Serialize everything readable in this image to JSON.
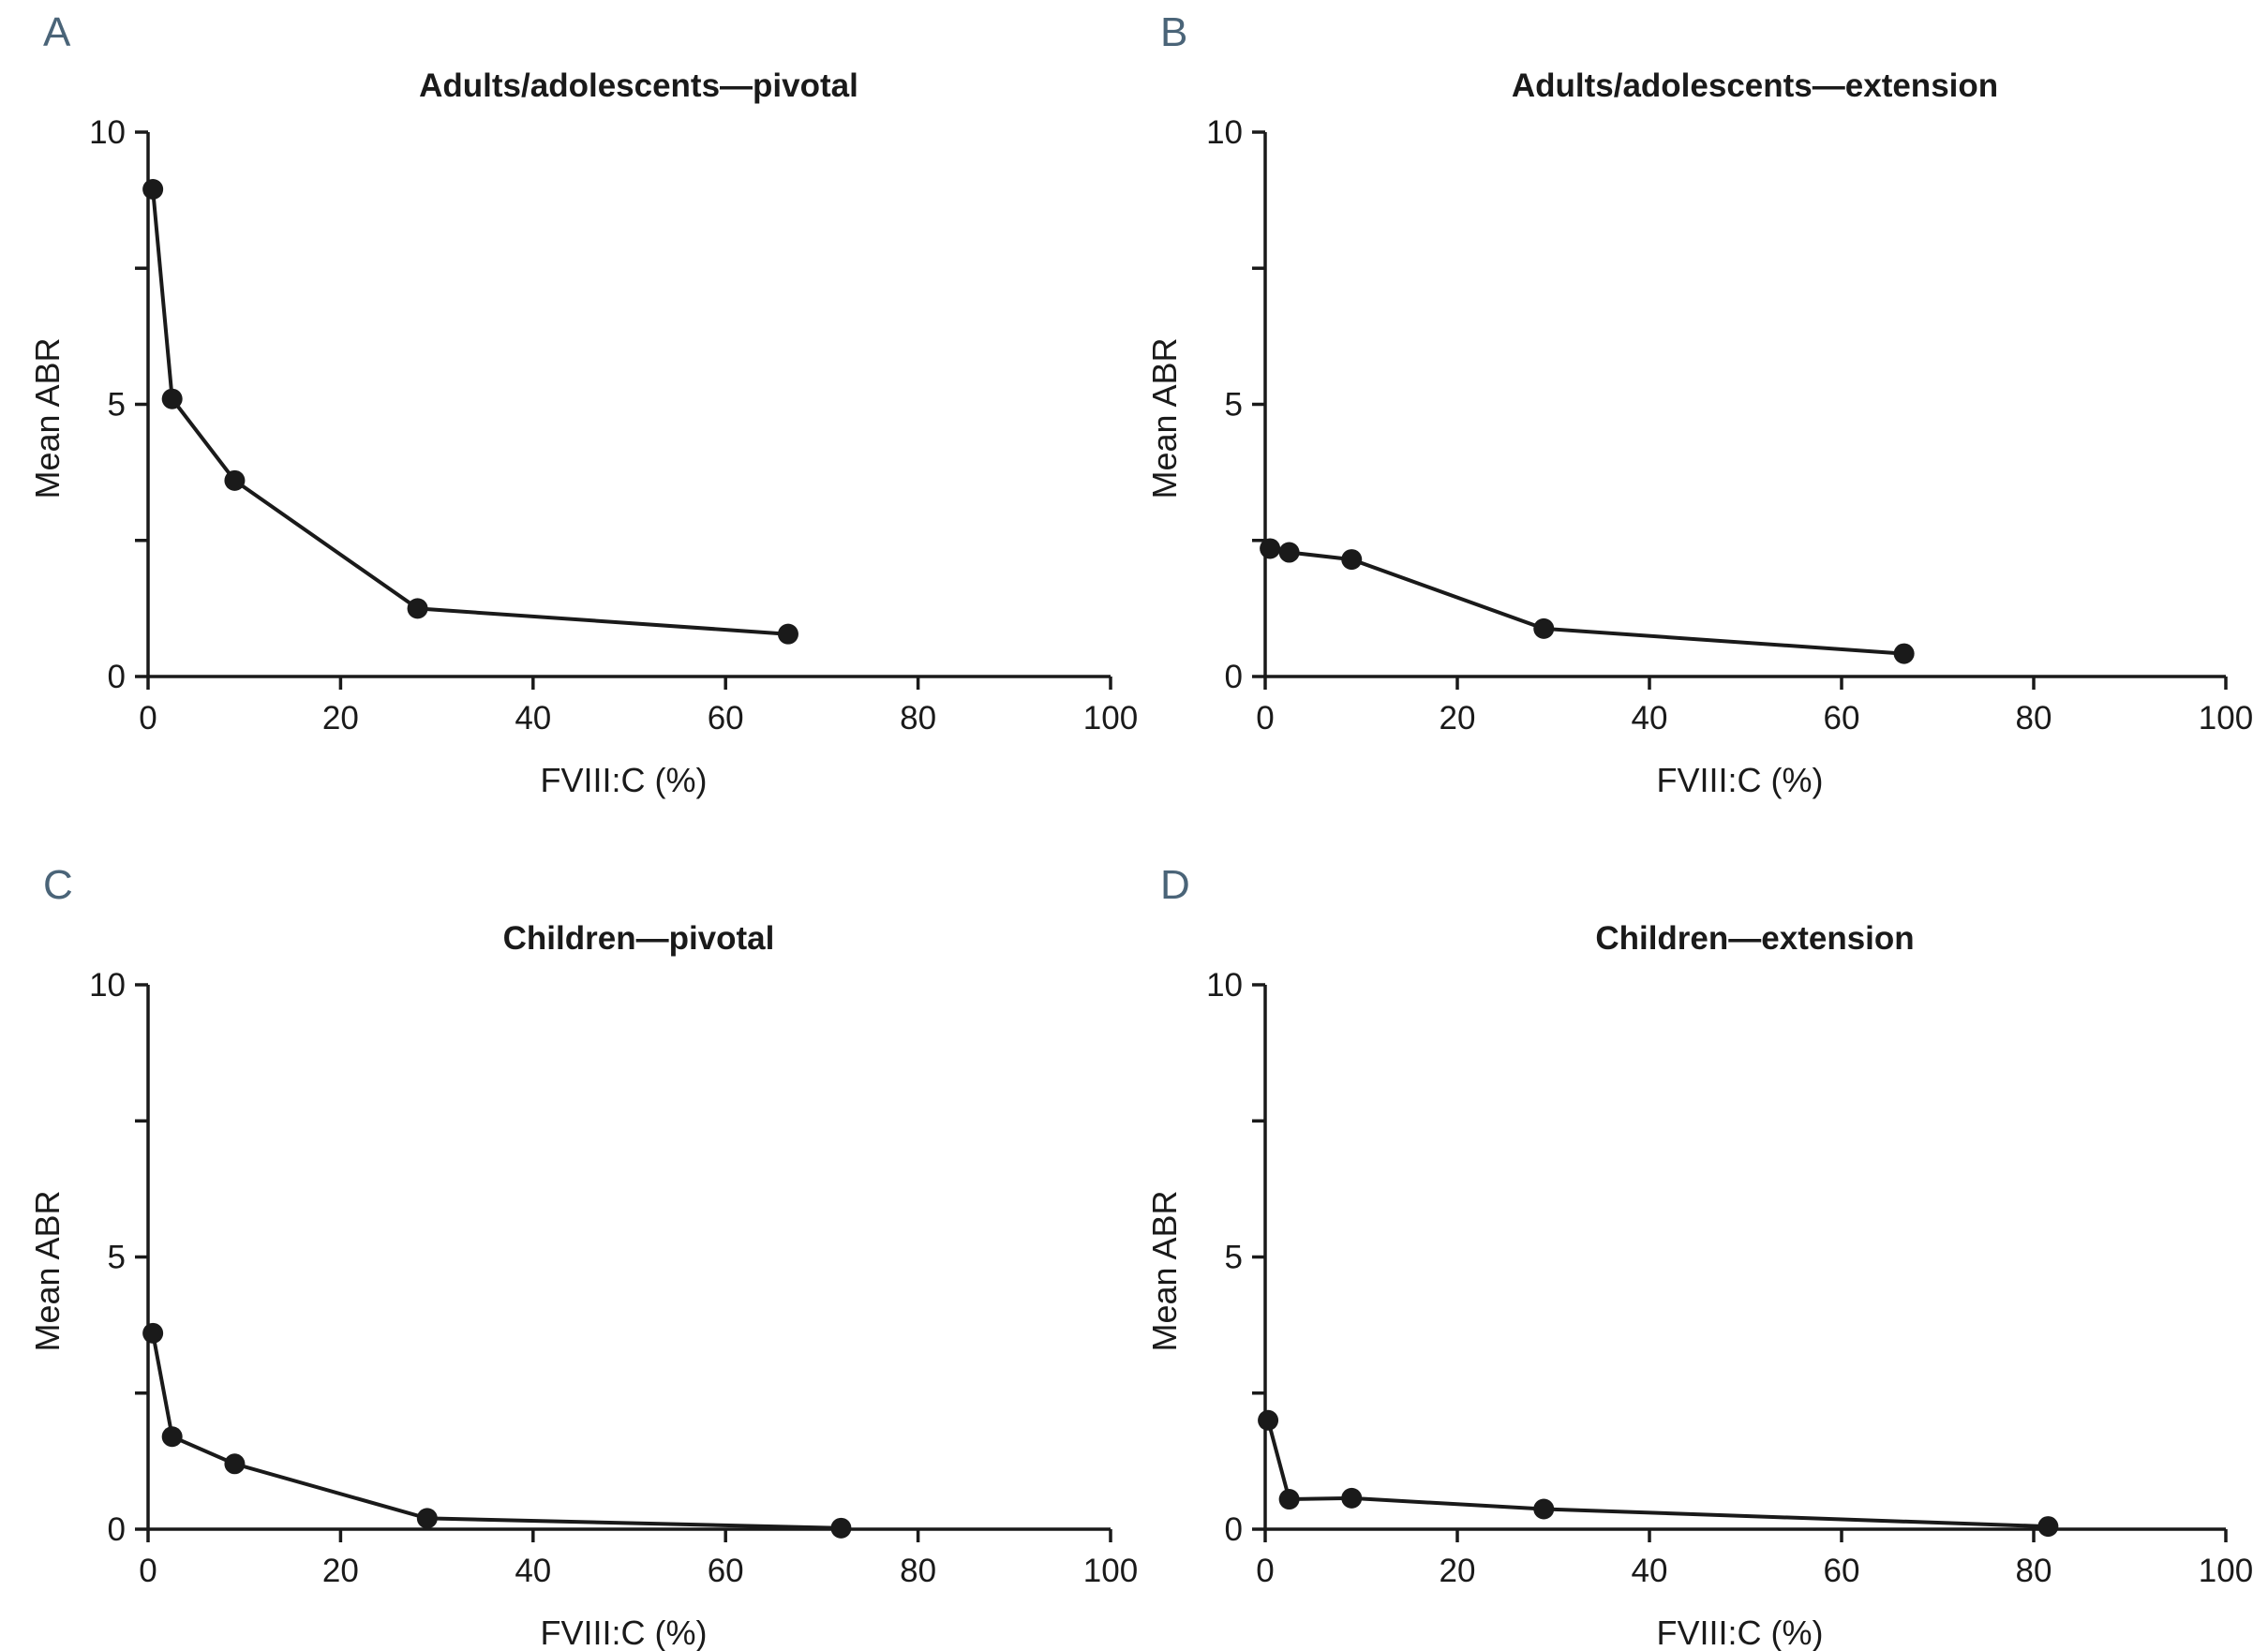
{
  "colors": {
    "series": "#1a1a1a",
    "panel_letter": "#4a6478"
  },
  "chart_data": [
    {
      "panel": "A",
      "type": "line",
      "title": "Adults/adolescents—pivotal",
      "xlabel": "FVIII:C (%)",
      "ylabel": "Mean ABR",
      "xlim": [
        0,
        100
      ],
      "ylim": [
        0,
        10
      ],
      "xticks": [
        0,
        20,
        40,
        60,
        80,
        100
      ],
      "yticks": [
        0,
        5,
        10
      ],
      "x": [
        0.5,
        2.5,
        9,
        28,
        66.5
      ],
      "y": [
        8.95,
        5.1,
        3.6,
        1.25,
        0.78
      ]
    },
    {
      "panel": "B",
      "type": "line",
      "title": "Adults/adolescents—extension",
      "xlabel": "FVIII:C (%)",
      "ylabel": "Mean ABR",
      "xlim": [
        0,
        100
      ],
      "ylim": [
        0,
        10
      ],
      "xticks": [
        0,
        20,
        40,
        60,
        80,
        100
      ],
      "yticks": [
        0,
        5,
        10
      ],
      "x": [
        0.5,
        2.5,
        9,
        29,
        66.5
      ],
      "y": [
        2.35,
        2.28,
        2.15,
        0.88,
        0.42
      ]
    },
    {
      "panel": "C",
      "type": "line",
      "title": "Children—pivotal",
      "xlabel": "FVIII:C (%)",
      "ylabel": "Mean ABR",
      "xlim": [
        0,
        100
      ],
      "ylim": [
        0,
        10
      ],
      "xticks": [
        0,
        20,
        40,
        60,
        80,
        100
      ],
      "yticks": [
        0,
        5,
        10
      ],
      "x": [
        0.5,
        2.5,
        9,
        29,
        72
      ],
      "y": [
        3.6,
        1.7,
        1.2,
        0.2,
        0.02
      ]
    },
    {
      "panel": "D",
      "type": "line",
      "title": "Children—extension",
      "xlabel": "FVIII:C (%)",
      "ylabel": "Mean ABR",
      "xlim": [
        0,
        100
      ],
      "ylim": [
        0,
        10
      ],
      "xticks": [
        0,
        20,
        40,
        60,
        80,
        100
      ],
      "yticks": [
        0,
        5,
        10
      ],
      "x": [
        0.3,
        2.5,
        9,
        29,
        81.5
      ],
      "y": [
        2.0,
        0.55,
        0.57,
        0.37,
        0.05
      ]
    }
  ]
}
